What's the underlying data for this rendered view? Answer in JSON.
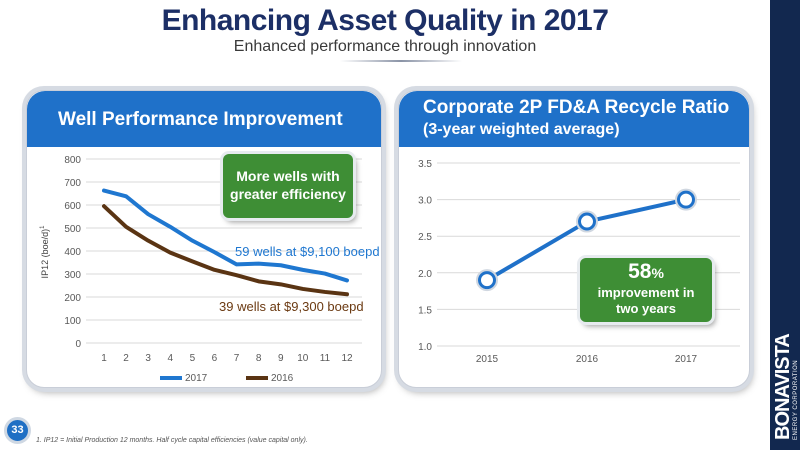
{
  "slide": {
    "title": "Enhancing Asset Quality in 2017",
    "subtitle": "Enhanced performance through innovation",
    "page_number": "33",
    "footnote": "1. IP12 = Initial Production 12 months. Half cycle capital efficiencies (value capital only).",
    "brand_name": "BONAVISTA",
    "brand_tagline": "ENERGY CORPORATION"
  },
  "left_panel": {
    "header": "Well Performance Improvement",
    "callout": [
      "More wells with",
      "greater efficiency"
    ],
    "label_2017": "59 wells at $9,100 boepd",
    "label_2016": "39 wells at $9,300 boepd"
  },
  "right_panel": {
    "header_line1": "Corporate 2P FD&A Recycle Ratio",
    "header_line2": "(3-year weighted average)",
    "callout_pct": "58",
    "callout_pct_sym": "%",
    "callout_text": [
      "improvement in",
      "two years"
    ]
  },
  "colors": {
    "header_blue": "#1f71c9",
    "series_2017": "#1f77d0",
    "series_2016": "#5a3413",
    "callout_green": "#3e8e35",
    "label_2017_color": "#1f77d0",
    "label_2016_color": "#6b3a12"
  },
  "chart_data": [
    {
      "type": "line",
      "x": [
        1,
        2,
        3,
        4,
        5,
        6,
        7,
        8,
        9,
        10,
        11,
        12
      ],
      "series": [
        {
          "name": "2017",
          "values": [
            663,
            638,
            560,
            505,
            445,
            395,
            342,
            345,
            338,
            318,
            302,
            272
          ]
        },
        {
          "name": "2016",
          "values": [
            595,
            505,
            445,
            393,
            355,
            318,
            295,
            268,
            255,
            235,
            222,
            212
          ]
        }
      ],
      "ylabel": "IP12 (boe/d)",
      "ylabel_superscript": "1",
      "ylim": [
        0,
        800
      ],
      "yticks": [
        "0",
        "100",
        "200",
        "300",
        "400",
        "500",
        "600",
        "700",
        "800"
      ],
      "grid": true,
      "legend": "bottom"
    },
    {
      "type": "line",
      "categories": [
        "2015",
        "2016",
        "2017"
      ],
      "values": [
        1.9,
        2.7,
        3.0
      ],
      "ylim": [
        1.0,
        3.5
      ],
      "yticks": [
        "1.0",
        "1.5",
        "2.0",
        "2.5",
        "3.0",
        "3.5"
      ],
      "grid": true,
      "legend": "none"
    }
  ]
}
